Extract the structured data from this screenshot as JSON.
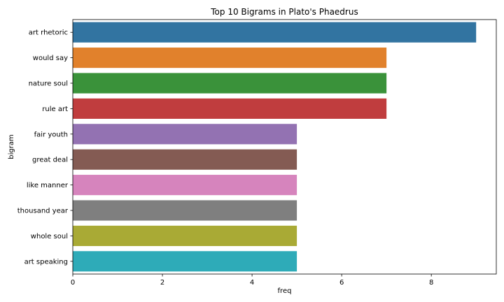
{
  "chart_data": {
    "type": "bar",
    "orientation": "horizontal",
    "title": "Top 10 Bigrams in Plato's Phaedrus",
    "xlabel": "freq",
    "ylabel": "bigram",
    "xlim": [
      0,
      9.45
    ],
    "xticks": [
      0,
      2,
      4,
      6,
      8
    ],
    "grid": false,
    "categories": [
      "art rhetoric",
      "would say",
      "nature soul",
      "rule art",
      "fair youth",
      "great deal",
      "like manner",
      "thousand year",
      "whole soul",
      "art speaking"
    ],
    "values": [
      9,
      7,
      7,
      7,
      5,
      5,
      5,
      5,
      5,
      5
    ],
    "colors": [
      "#3274a1",
      "#e1812c",
      "#3a923a",
      "#c03d3e",
      "#9372b2",
      "#845b53",
      "#d684bd",
      "#7f7f7f",
      "#a9aa35",
      "#2eabb8"
    ]
  }
}
